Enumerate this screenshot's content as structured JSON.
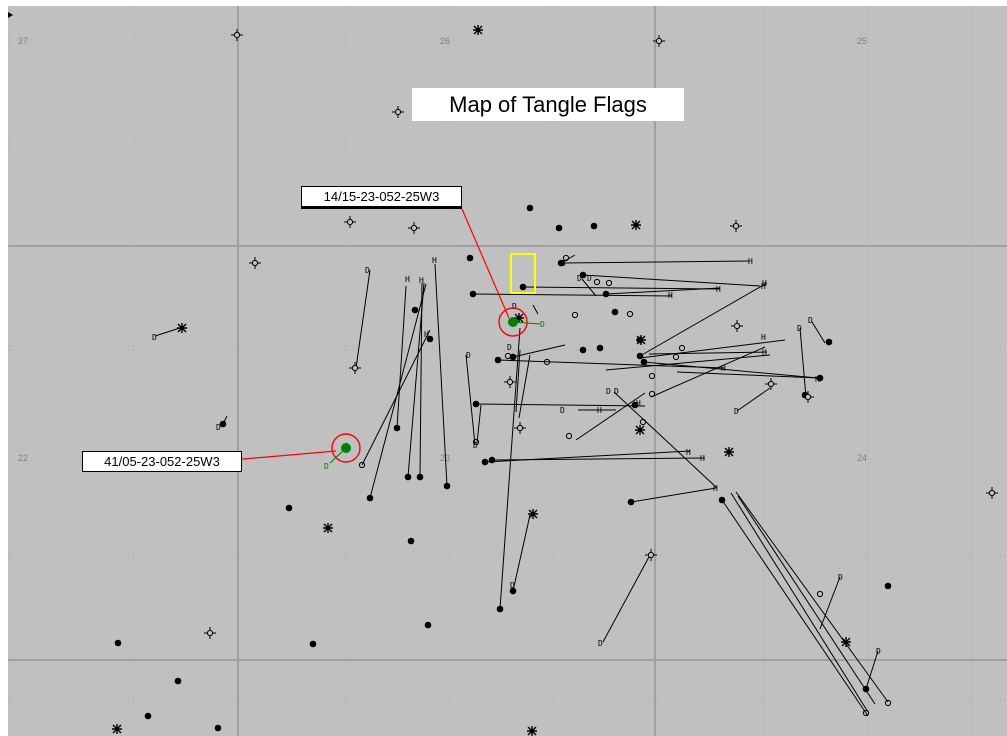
{
  "map": {
    "title": "Map of Tangle Flags",
    "background_color": "#c0c0c0",
    "grid_color": "#a8a8a8",
    "section_line_color": "#a0a0a0",
    "highlight_color": "#ff0000",
    "target_well_color": "#008000",
    "selection_box_color": "#ffff00"
  },
  "section_labels": [
    {
      "name": "sec-27",
      "text": "27"
    },
    {
      "name": "sec-26",
      "text": "26"
    },
    {
      "name": "sec-25",
      "text": "25"
    },
    {
      "name": "sec-22",
      "text": "22"
    },
    {
      "name": "sec-23",
      "text": "23"
    },
    {
      "name": "sec-24",
      "text": "24"
    }
  ],
  "well_callouts": [
    {
      "name": "well-14-15",
      "text": "14/15-23-052-25W3"
    },
    {
      "name": "well-41-05",
      "text": "41/05-23-052-25W3"
    }
  ],
  "symbol_legend": {
    "D": "drilling point marker",
    "H": "horizontal endpoint marker"
  }
}
